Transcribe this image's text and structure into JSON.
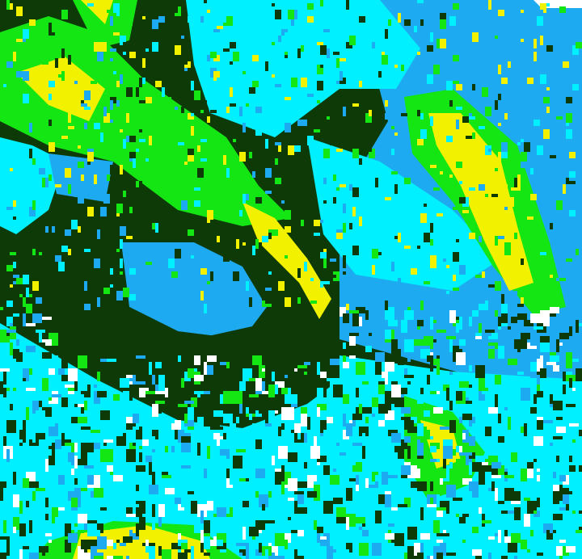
{
  "image": {
    "palette": {
      "dark_green": "#0e3a08",
      "green": "#14e614",
      "yellow": "#f2f200",
      "cyan": "#00f0ff",
      "light_blue": "#1eaaf0",
      "white": "#ffffff"
    }
  }
}
